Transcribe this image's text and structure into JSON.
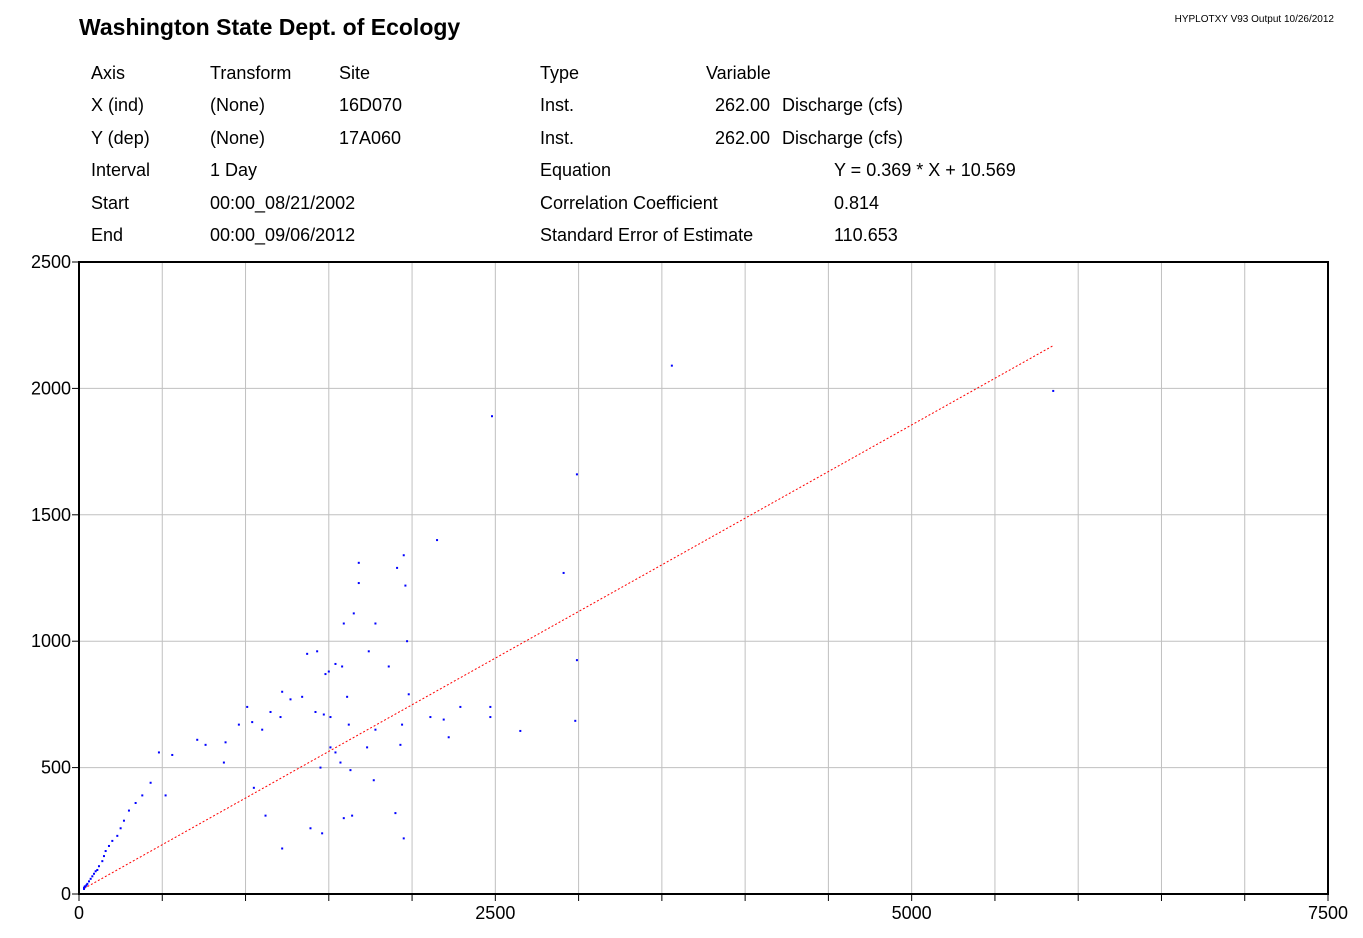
{
  "header": {
    "title": "Washington State Dept. of Ecology",
    "version": "HYPLOTXY V93  Output 10/26/2012"
  },
  "info": {
    "col_headers": {
      "axis": "Axis",
      "transform": "Transform",
      "site": "Site",
      "type": "Type",
      "variable": "Variable"
    },
    "x_row": {
      "axis": "X (ind)",
      "transform": "(None)",
      "site": "16D070",
      "type": "Inst.",
      "code": "262.00",
      "variable": "Discharge (cfs)"
    },
    "y_row": {
      "axis": "Y (dep)",
      "transform": "(None)",
      "site": "17A060",
      "type": "Inst.",
      "code": "262.00",
      "variable": "Discharge (cfs)"
    },
    "interval": {
      "label": "Interval",
      "value": "1 Day"
    },
    "start": {
      "label": "Start",
      "value": "00:00_08/21/2002"
    },
    "end": {
      "label": "End",
      "value": "00:00_09/06/2012"
    },
    "equation": {
      "label": "Equation",
      "value": "Y = 0.369 * X + 10.569"
    },
    "correlation": {
      "label": "Correlation Coefficient",
      "value": "0.814"
    },
    "std_error": {
      "label": "Standard Error of Estimate",
      "value": "110.653"
    }
  },
  "chart_data": {
    "type": "scatter",
    "title": "",
    "xlabel": "",
    "ylabel": "",
    "xlim": [
      0,
      7500
    ],
    "ylim": [
      0,
      2500
    ],
    "x_ticks": [
      0,
      2500,
      5000,
      7500
    ],
    "y_ticks": [
      0,
      500,
      1000,
      1500,
      2000,
      2500
    ],
    "x_gridlines": [
      0,
      500,
      1000,
      1500,
      2000,
      2500,
      3000,
      3500,
      4000,
      4500,
      5000,
      5500,
      6000,
      6500,
      7000,
      7500
    ],
    "y_gridlines": [
      0,
      500,
      1000,
      1500,
      2000,
      2500
    ],
    "grid": true,
    "colors": {
      "points": "#0000ff",
      "regression": "#ff0000",
      "grid": "#c0c0c0",
      "frame": "#000000"
    },
    "regression": {
      "slope": 0.369,
      "intercept": 10.569,
      "x_range": [
        30,
        5850
      ]
    },
    "series": [
      {
        "points": [
          [
            3560,
            2090
          ],
          [
            5850,
            1990
          ],
          [
            2480,
            1890
          ],
          [
            2990,
            1660
          ],
          [
            2150,
            1400
          ],
          [
            1680,
            1310
          ],
          [
            1950,
            1340
          ],
          [
            1910,
            1290
          ],
          [
            1680,
            1230
          ],
          [
            1960,
            1220
          ],
          [
            2910,
            1270
          ],
          [
            1650,
            1110
          ],
          [
            1590,
            1070
          ],
          [
            1780,
            1070
          ],
          [
            1970,
            1000
          ],
          [
            1740,
            960
          ],
          [
            2990,
            925
          ],
          [
            1430,
            960
          ],
          [
            1370,
            950
          ],
          [
            1540,
            910
          ],
          [
            1500,
            880
          ],
          [
            1480,
            870
          ],
          [
            1580,
            900
          ],
          [
            1860,
            900
          ],
          [
            1980,
            790
          ],
          [
            1220,
            800
          ],
          [
            1270,
            770
          ],
          [
            1340,
            780
          ],
          [
            1610,
            780
          ],
          [
            1420,
            720
          ],
          [
            1470,
            710
          ],
          [
            1510,
            700
          ],
          [
            1620,
            670
          ],
          [
            1780,
            650
          ],
          [
            1940,
            670
          ],
          [
            2110,
            700
          ],
          [
            2190,
            690
          ],
          [
            2290,
            740
          ],
          [
            2470,
            740
          ],
          [
            2470,
            700
          ],
          [
            2650,
            645
          ],
          [
            2980,
            685
          ],
          [
            2220,
            620
          ],
          [
            1730,
            580
          ],
          [
            1570,
            520
          ],
          [
            1510,
            580
          ],
          [
            1540,
            560
          ],
          [
            1450,
            500
          ],
          [
            1930,
            590
          ],
          [
            1630,
            490
          ],
          [
            1770,
            450
          ],
          [
            1640,
            310
          ],
          [
            1590,
            300
          ],
          [
            1900,
            320
          ],
          [
            1950,
            220
          ],
          [
            1390,
            260
          ],
          [
            1460,
            240
          ],
          [
            1220,
            180
          ],
          [
            1120,
            310
          ],
          [
            1050,
            420
          ],
          [
            880,
            600
          ],
          [
            960,
            670
          ],
          [
            1040,
            680
          ],
          [
            1100,
            650
          ],
          [
            1150,
            720
          ],
          [
            1210,
            700
          ],
          [
            1010,
            740
          ],
          [
            870,
            520
          ],
          [
            760,
            590
          ],
          [
            710,
            610
          ],
          [
            560,
            550
          ],
          [
            480,
            560
          ],
          [
            520,
            390
          ],
          [
            430,
            440
          ],
          [
            380,
            390
          ],
          [
            340,
            360
          ],
          [
            300,
            330
          ],
          [
            270,
            290
          ],
          [
            250,
            260
          ],
          [
            230,
            230
          ],
          [
            200,
            210
          ],
          [
            180,
            190
          ],
          [
            160,
            170
          ],
          [
            150,
            150
          ],
          [
            140,
            130
          ],
          [
            120,
            110
          ],
          [
            110,
            95
          ],
          [
            100,
            90
          ],
          [
            90,
            80
          ],
          [
            80,
            70
          ],
          [
            70,
            60
          ],
          [
            60,
            50
          ],
          [
            50,
            40
          ],
          [
            45,
            35
          ],
          [
            40,
            30
          ],
          [
            35,
            30
          ],
          [
            30,
            25
          ],
          [
            30,
            20
          ]
        ]
      }
    ]
  }
}
